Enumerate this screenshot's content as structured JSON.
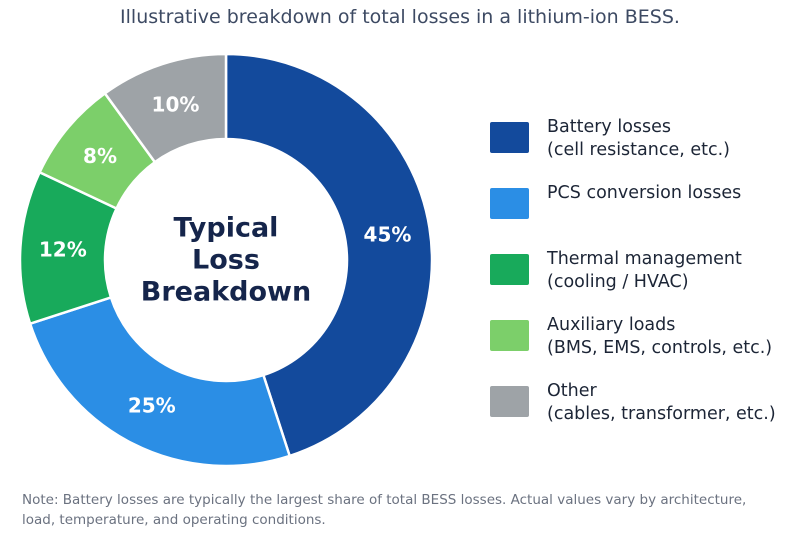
{
  "subtitle": "Illustrative breakdown of total losses in a lithium-ion BESS.",
  "chart_data": {
    "type": "pie",
    "center_label": [
      "Typical",
      "Loss",
      "Breakdown"
    ],
    "slices": [
      {
        "value": 45,
        "label": "45%",
        "color": "#134a9c",
        "legend": [
          "Battery losses",
          "(cell resistance, etc.)"
        ]
      },
      {
        "value": 25,
        "label": "25%",
        "color": "#2b8ee5",
        "legend": [
          "PCS conversion losses"
        ]
      },
      {
        "value": 12,
        "label": "12%",
        "color": "#18aa5b",
        "legend": [
          "Thermal management",
          "(cooling / HVAC)"
        ]
      },
      {
        "value": 8,
        "label": "8%",
        "color": "#7ccf6a",
        "legend": [
          "Auxiliary loads",
          "(BMS, EMS, controls, etc.)"
        ]
      },
      {
        "value": 10,
        "label": "10%",
        "color": "#9ea3a7",
        "legend": [
          "Other",
          "(cables, transformer, etc.)"
        ]
      }
    ],
    "legend_position": "right"
  },
  "note": [
    "Note: Battery losses are typically the largest share of total BESS losses. Actual values vary by architecture,",
    "load, temperature, and operating conditions."
  ]
}
